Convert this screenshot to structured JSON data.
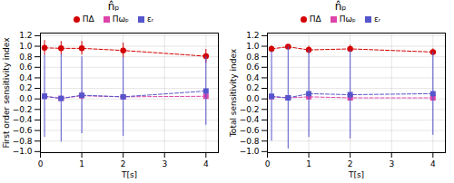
{
  "chart_data": [
    {
      "type": "line",
      "title": "n̂ₚ",
      "xlabel": "T[s]",
      "ylabel": "First order sensitivity index",
      "x": [
        0.1,
        0.5,
        1.0,
        2.0,
        4.0
      ],
      "series": [
        {
          "name": "ΠΔ",
          "color": "#d40000",
          "marker": "circle",
          "line_style": "dashed",
          "values": [
            0.97,
            0.96,
            0.96,
            0.92,
            0.81
          ],
          "yerr": [
            0.14,
            0.13,
            0.13,
            0.14,
            0.13
          ]
        },
        {
          "name": "Πωₚ",
          "color": "#dd44aa",
          "marker": "square",
          "line_style": "dashed",
          "values": [
            0.05,
            0.01,
            0.06,
            0.04,
            0.05
          ],
          "yerr": [
            0.04,
            0.04,
            0.07,
            0.03,
            0.02
          ]
        },
        {
          "name": "εᵣ",
          "color": "#5555cc",
          "marker": "square",
          "line_style": "dashed",
          "values": [
            0.05,
            0.01,
            0.07,
            0.04,
            0.15
          ],
          "yerr": [
            0.78,
            0.83,
            0.73,
            0.75,
            0.65
          ]
        }
      ],
      "xlim": [
        0,
        4.3
      ],
      "xticks": [
        0,
        1,
        2,
        3,
        4
      ],
      "ylim": [
        -1.02,
        1.25
      ],
      "yticks": [
        {
          "value": -1.0,
          "label": "−1.0"
        },
        {
          "value": -0.8,
          "label": "−0.8"
        },
        {
          "value": -0.6,
          "label": "−0.6"
        },
        {
          "value": -0.4,
          "label": "−0.4"
        },
        {
          "value": -0.2,
          "label": "−0.2"
        },
        {
          "value": 0.0,
          "label": "0.0"
        },
        0.2,
        0.4,
        0.6,
        0.8,
        {
          "value": 1.0,
          "label": "1.0"
        },
        1.2
      ],
      "grid": true,
      "legend": "top"
    },
    {
      "type": "line",
      "title": "n̂ₚ",
      "xlabel": "T[s]",
      "ylabel": "Total sensitivity index",
      "x": [
        0.1,
        0.5,
        1.0,
        2.0,
        4.0
      ],
      "series": [
        {
          "name": "ΠΔ",
          "color": "#d40000",
          "marker": "circle",
          "line_style": "dashed",
          "values": [
            0.95,
            0.99,
            0.93,
            0.95,
            0.89
          ],
          "yerr": [
            0.06,
            0.02,
            0.07,
            0.07,
            0.06
          ]
        },
        {
          "name": "Πωₚ",
          "color": "#dd44aa",
          "marker": "square",
          "line_style": "dashed",
          "values": [
            0.04,
            0.02,
            0.04,
            0.02,
            0.02
          ],
          "yerr": [
            0.03,
            0.015,
            0.035,
            0.015,
            0.015
          ]
        },
        {
          "name": "εᵣ",
          "color": "#5555cc",
          "marker": "square",
          "line_style": "dashed",
          "values": [
            0.05,
            0.02,
            0.1,
            0.08,
            0.1
          ],
          "yerr": [
            0.85,
            0.97,
            0.83,
            0.84,
            0.79
          ]
        }
      ],
      "xlim": [
        0,
        4.3
      ],
      "xticks": [
        0,
        1,
        2,
        3,
        4
      ],
      "ylim": [
        -1.02,
        1.25
      ],
      "yticks": [
        {
          "value": -1.0,
          "label": "−1.0"
        },
        {
          "value": -0.8,
          "label": "−0.8"
        },
        {
          "value": -0.6,
          "label": "−0.6"
        },
        {
          "value": -0.4,
          "label": "−0.4"
        },
        {
          "value": -0.2,
          "label": "−0.2"
        },
        {
          "value": 0.0,
          "label": "0.0"
        },
        0.2,
        0.4,
        0.6,
        0.8,
        {
          "value": 1.0,
          "label": "1.0"
        },
        1.2
      ],
      "grid": true,
      "legend": "top"
    }
  ]
}
